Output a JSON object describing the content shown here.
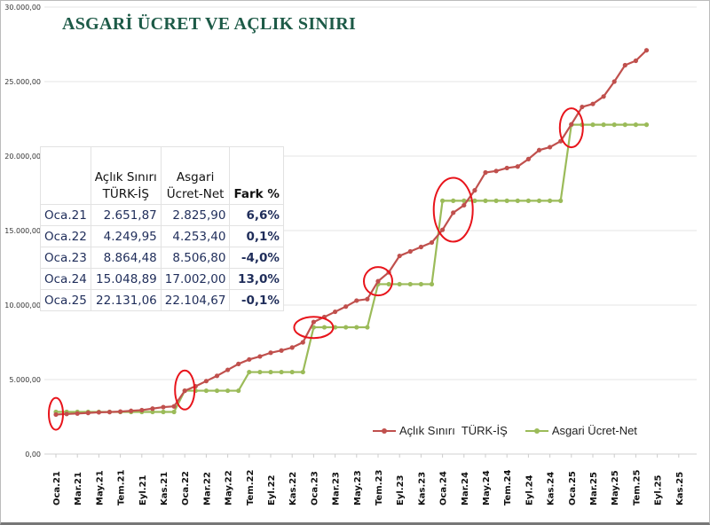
{
  "title": "ASGARİ ÜCRET VE AÇLIK SINIRI",
  "colors": {
    "red_series": "#c0504d",
    "green_series": "#9bbb59",
    "circle": "#e8141b",
    "title": "#1d5a47"
  },
  "table": {
    "headers": [
      "",
      "Açlık Sınırı TÜRK-İŞ",
      "Asgari Ücret-Net",
      "Fark %"
    ],
    "header_lines": [
      [
        "",
        ""
      ],
      [
        "Açlık Sınırı",
        "TÜRK-İŞ"
      ],
      [
        "Asgari",
        "Ücret-Net"
      ],
      [
        "",
        "Fark %"
      ]
    ],
    "rows": [
      [
        "Oca.21",
        "2.651,87",
        "2.825,90",
        "6,6%"
      ],
      [
        "Oca.22",
        "4.249,95",
        "4.253,40",
        "0,1%"
      ],
      [
        "Oca.23",
        "8.864,48",
        "8.506,80",
        "-4,0%"
      ],
      [
        "Oca.24",
        "15.048,89",
        "17.002,00",
        "13,0%"
      ],
      [
        "Oca.25",
        "22.131,06",
        "22.104,67",
        "-0,1%"
      ]
    ]
  },
  "chart_data": {
    "type": "line",
    "title": "ASGARİ ÜCRET VE AÇLIK SINIRI",
    "ylim": [
      0,
      30000
    ],
    "yticks": [
      0,
      5000,
      10000,
      15000,
      20000,
      25000,
      30000
    ],
    "ytick_labels": [
      "0,00",
      "5.000,00",
      "10.000,00",
      "15.000,00",
      "20.000,00",
      "25.000,00",
      "30.000,00"
    ],
    "xtick_labels": [
      "Oca.21",
      "Mar.21",
      "May.21",
      "Tem.21",
      "Eyl.21",
      "Kas.21",
      "Oca.22",
      "Mar.22",
      "May.22",
      "Tem.22",
      "Eyl.22",
      "Kas.22",
      "Oca.23",
      "Mar.23",
      "May.23",
      "Tem.23",
      "Eyl.23",
      "Kas.23",
      "Oca.24",
      "Mar.24",
      "May.24",
      "Tem.24",
      "Eyl.24",
      "Kas.24",
      "Oca.25",
      "Mar.25",
      "May.25",
      "Tem.25",
      "Eyl.25",
      "Kas.25"
    ],
    "months_total": 60,
    "grid": true,
    "legend_position": "bottom-right",
    "series": [
      {
        "name": "Açlık Sınırı  TÜRK-İŞ",
        "color": "#c0504d",
        "values": [
          2652,
          2690,
          2720,
          2760,
          2800,
          2820,
          2850,
          2900,
          2950,
          3050,
          3150,
          3200,
          4250,
          4550,
          4900,
          5250,
          5650,
          6050,
          6350,
          6550,
          6800,
          6950,
          7150,
          7500,
          8864,
          9200,
          9550,
          9900,
          10300,
          10400,
          11600,
          12200,
          13300,
          13600,
          13900,
          14200,
          15049,
          16200,
          16700,
          17700,
          18900,
          19000,
          19200,
          19300,
          19800,
          20400,
          20600,
          21000,
          22131,
          23300,
          23500,
          24000,
          25000,
          26100,
          26400,
          27100
        ]
      },
      {
        "name": "Asgari Ücret-Net",
        "color": "#9bbb59",
        "values": [
          2826,
          2826,
          2826,
          2826,
          2826,
          2826,
          2826,
          2826,
          2826,
          2826,
          2826,
          2826,
          4253,
          4253,
          4253,
          4253,
          4253,
          4253,
          5501,
          5501,
          5501,
          5501,
          5501,
          5501,
          8507,
          8507,
          8507,
          8507,
          8507,
          8507,
          11402,
          11402,
          11402,
          11402,
          11402,
          11402,
          17002,
          17002,
          17002,
          17002,
          17002,
          17002,
          17002,
          17002,
          17002,
          17002,
          17002,
          17002,
          22105,
          22105,
          22105,
          22105,
          22105,
          22105,
          22105,
          22105
        ]
      }
    ],
    "annotations": [
      {
        "type": "circle",
        "month_index": 0,
        "value": 2700
      },
      {
        "type": "circle",
        "month_index": 12,
        "value": 4300
      },
      {
        "type": "circle",
        "month_index": 24,
        "value": 8500
      },
      {
        "type": "circle",
        "month_index": 30,
        "value": 11600
      },
      {
        "type": "circle",
        "month_index": 37,
        "value": 16400
      },
      {
        "type": "circle",
        "month_index": 48,
        "value": 21900
      }
    ]
  }
}
